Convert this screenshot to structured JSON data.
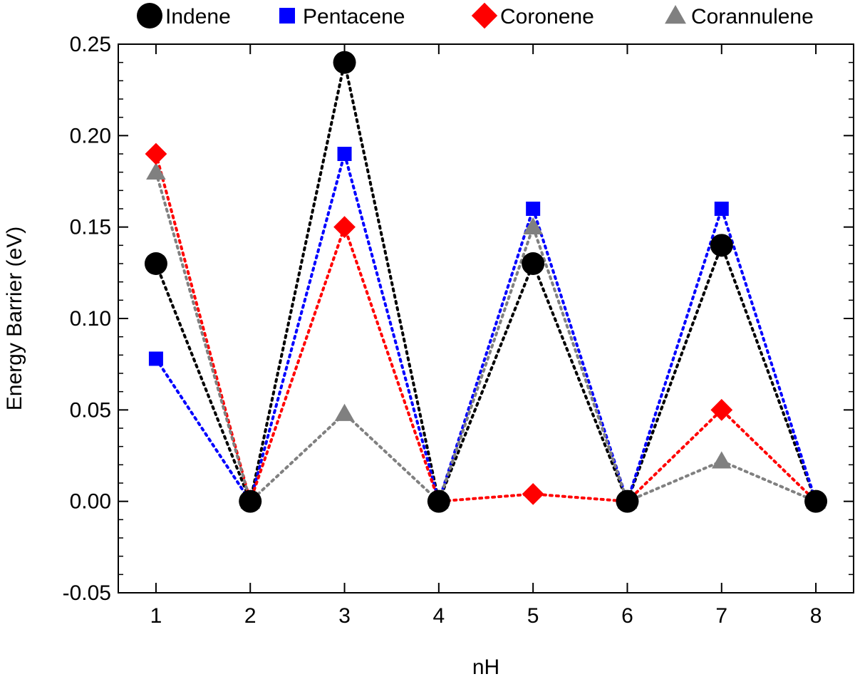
{
  "chart_data": {
    "type": "line",
    "xlabel": "nH",
    "ylabel": "Energy Barrier (eV)",
    "x": [
      1,
      2,
      3,
      4,
      5,
      6,
      7,
      8
    ],
    "xlim": [
      0.6,
      8.4
    ],
    "ylim": [
      -0.05,
      0.25
    ],
    "x_ticks": [
      "1",
      "2",
      "3",
      "4",
      "5",
      "6",
      "7",
      "8"
    ],
    "y_ticks": [
      "-0.05",
      "0.00",
      "0.05",
      "0.10",
      "0.15",
      "0.20",
      "0.25"
    ],
    "y_tick_values": [
      -0.05,
      0.0,
      0.05,
      0.1,
      0.15,
      0.2,
      0.25
    ],
    "grid": false,
    "legend_position": "top",
    "line_style": "dotted",
    "series": [
      {
        "name": "Indene",
        "marker": "circle",
        "color": "#000000",
        "values": [
          0.13,
          0.0,
          0.24,
          0.0,
          0.13,
          0.0,
          0.14,
          0.0
        ]
      },
      {
        "name": "Pentacene",
        "marker": "square",
        "color": "#0000ff",
        "values": [
          0.078,
          0.0,
          0.19,
          0.0,
          0.16,
          0.0,
          0.16,
          0.0
        ]
      },
      {
        "name": "Coronene",
        "marker": "diamond",
        "color": "#ff0000",
        "values": [
          0.19,
          0.0,
          0.15,
          0.0,
          0.004,
          0.0,
          0.05,
          0.0
        ]
      },
      {
        "name": "Corannulene",
        "marker": "triangle",
        "color": "#808080",
        "values": [
          0.18,
          0.0,
          0.048,
          0.0,
          0.15,
          0.0,
          0.022,
          0.0
        ]
      }
    ]
  }
}
